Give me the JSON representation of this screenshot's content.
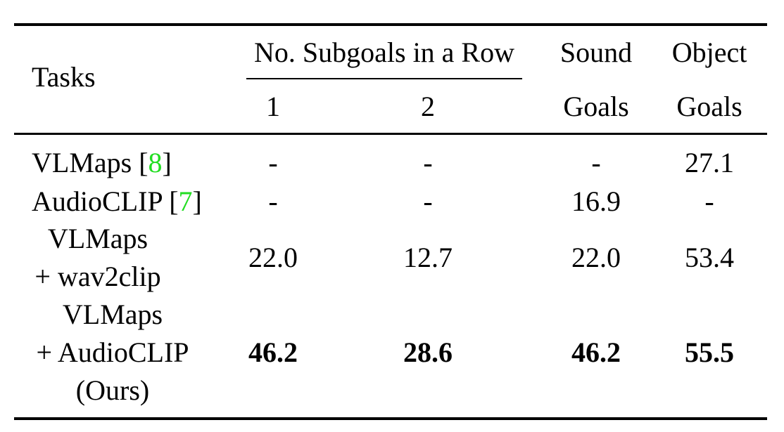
{
  "table": {
    "header": {
      "tasks": "Tasks",
      "group": "No. Subgoals in a Row",
      "sub": [
        "1",
        "2"
      ],
      "sound": [
        "Sound",
        "Goals"
      ],
      "object": [
        "Object",
        "Goals"
      ]
    },
    "rows": [
      {
        "task": [
          "VLMaps [",
          "8",
          "]"
        ],
        "values": [
          "-",
          "-",
          "-",
          "27.1"
        ]
      },
      {
        "task": [
          "AudioCLIP [",
          "7",
          "]"
        ],
        "values": [
          "-",
          "-",
          "16.9",
          "-"
        ]
      },
      {
        "task": [
          "VLMaps",
          "+ wav2clip"
        ],
        "values": [
          "22.0",
          "12.7",
          "22.0",
          "53.4"
        ]
      },
      {
        "task": [
          "VLMaps",
          "+ AudioCLIP",
          "(Ours)"
        ],
        "values": [
          "46.2",
          "28.6",
          "46.2",
          "55.5"
        ],
        "bold": true
      }
    ]
  }
}
